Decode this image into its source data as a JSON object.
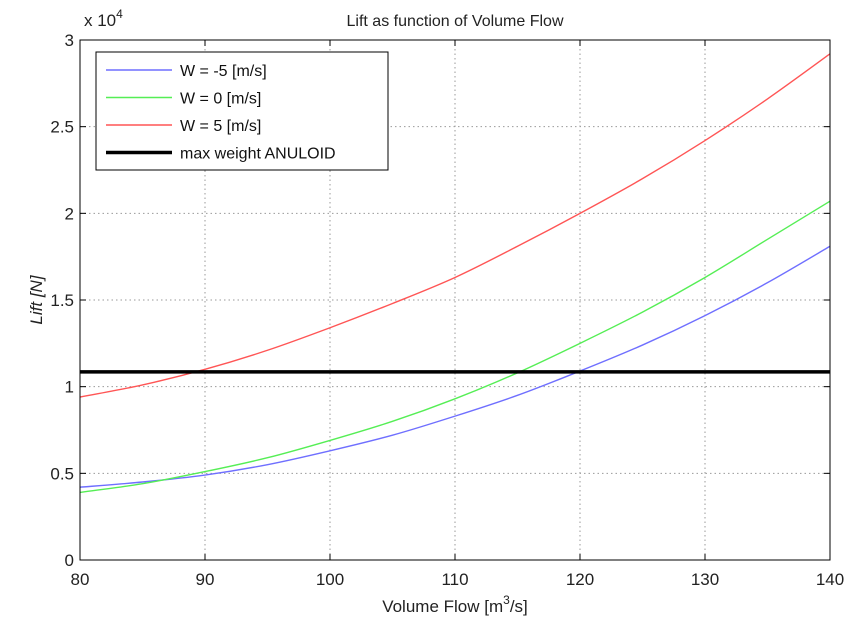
{
  "chart_data": {
    "type": "line",
    "title": "Lift as function of Volume Flow",
    "xlabel": "Volume Flow [m",
    "xlabel_sup": "3",
    "xlabel_end": "/s]",
    "ylabel": "Lift [N]",
    "y_multiplier": "x 10",
    "y_multiplier_exp": "4",
    "xlim": [
      80,
      140
    ],
    "ylim": [
      0,
      3
    ],
    "xticks": [
      80,
      90,
      100,
      110,
      120,
      130,
      140
    ],
    "xtick_labels": [
      "80",
      "90",
      "100",
      "110",
      "120",
      "130",
      "140"
    ],
    "yticks": [
      0,
      0.5,
      1,
      1.5,
      2,
      2.5,
      3
    ],
    "ytick_labels": [
      "0",
      "0.5",
      "1",
      "1.5",
      "2",
      "2.5",
      "3"
    ],
    "grid": true,
    "legend_position": "top-left",
    "series": [
      {
        "name": "W = -5 [m/s]",
        "color": "#6f6fff",
        "x": [
          80,
          85,
          90,
          95,
          100,
          105,
          110,
          115,
          120,
          125,
          130,
          135,
          140
        ],
        "values": [
          0.42,
          0.45,
          0.49,
          0.55,
          0.63,
          0.72,
          0.83,
          0.95,
          1.09,
          1.24,
          1.41,
          1.6,
          1.81
        ]
      },
      {
        "name": "W = 0 [m/s]",
        "color": "#55ee55",
        "x": [
          80,
          85,
          90,
          95,
          100,
          105,
          110,
          115,
          120,
          125,
          130,
          135,
          140
        ],
        "values": [
          0.39,
          0.44,
          0.51,
          0.59,
          0.69,
          0.8,
          0.93,
          1.08,
          1.25,
          1.43,
          1.63,
          1.85,
          2.07
        ]
      },
      {
        "name": "W = 5 [m/s]",
        "color": "#ff5555",
        "x": [
          80,
          85,
          90,
          95,
          100,
          105,
          110,
          115,
          120,
          125,
          130,
          135,
          140
        ],
        "values": [
          0.94,
          1.01,
          1.1,
          1.21,
          1.34,
          1.48,
          1.63,
          1.81,
          2.0,
          2.2,
          2.42,
          2.66,
          2.92
        ]
      },
      {
        "name": "max weight ANULOID",
        "color": "#000000",
        "x": [
          80,
          140
        ],
        "values": [
          1.085,
          1.085
        ]
      }
    ]
  }
}
